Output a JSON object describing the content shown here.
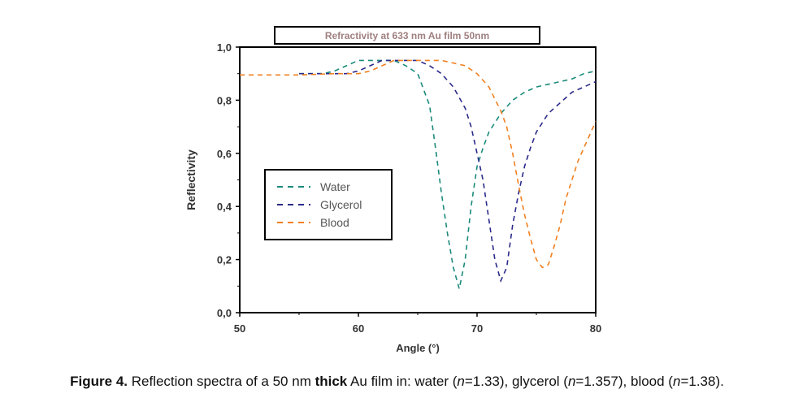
{
  "chart_data": {
    "type": "line",
    "title": "Refractivity at 633 nm Au film 50nm",
    "xlabel": "Angle (°)",
    "ylabel": "Reflectivity",
    "xlim": [
      50,
      80
    ],
    "ylim": [
      0,
      1
    ],
    "xticks": [
      "50",
      "60",
      "70",
      "80"
    ],
    "yticks": [
      "0,0",
      "0,2",
      "0,4",
      "0,6",
      "0,8",
      "1,0"
    ],
    "legend_position": "center-left",
    "series": [
      {
        "name": "Water",
        "color": "#1a8a7a",
        "x": [
          55,
          57,
          58,
          59,
          60,
          61,
          62,
          63,
          64,
          65,
          66,
          66.5,
          67,
          67.5,
          68,
          68.5,
          69,
          69.5,
          70,
          70.5,
          71,
          72,
          73,
          74,
          75,
          76,
          77,
          78,
          79,
          80
        ],
        "y": [
          0.9,
          0.9,
          0.91,
          0.93,
          0.95,
          0.95,
          0.95,
          0.95,
          0.93,
          0.9,
          0.78,
          0.62,
          0.45,
          0.3,
          0.17,
          0.09,
          0.2,
          0.4,
          0.55,
          0.62,
          0.68,
          0.75,
          0.8,
          0.83,
          0.85,
          0.86,
          0.87,
          0.88,
          0.9,
          0.91
        ]
      },
      {
        "name": "Glycerol",
        "color": "#2a2a8a",
        "x": [
          55,
          57,
          58,
          59,
          60,
          61,
          62,
          63,
          64,
          65,
          66,
          67,
          68,
          69,
          69.5,
          70,
          70.5,
          71,
          71.5,
          72,
          72.5,
          73,
          73.5,
          74,
          74.5,
          75,
          76,
          77,
          78,
          79,
          80
        ],
        "y": [
          0.9,
          0.9,
          0.9,
          0.9,
          0.91,
          0.93,
          0.95,
          0.95,
          0.95,
          0.95,
          0.93,
          0.9,
          0.85,
          0.77,
          0.7,
          0.6,
          0.5,
          0.35,
          0.2,
          0.12,
          0.17,
          0.33,
          0.45,
          0.55,
          0.62,
          0.68,
          0.75,
          0.79,
          0.83,
          0.85,
          0.87
        ]
      },
      {
        "name": "Blood",
        "color": "#f08020",
        "x": [
          50,
          55,
          58,
          60,
          61,
          62,
          63,
          64,
          65,
          66,
          67,
          68,
          69,
          70,
          71,
          72,
          72.5,
          73,
          73.5,
          74,
          74.5,
          75,
          75.5,
          76,
          76.5,
          77,
          77.5,
          78,
          78.5,
          79,
          79.5,
          80
        ],
        "y": [
          0.895,
          0.895,
          0.9,
          0.9,
          0.91,
          0.93,
          0.95,
          0.95,
          0.95,
          0.95,
          0.95,
          0.94,
          0.93,
          0.9,
          0.85,
          0.76,
          0.7,
          0.6,
          0.48,
          0.37,
          0.28,
          0.2,
          0.17,
          0.18,
          0.25,
          0.33,
          0.43,
          0.5,
          0.57,
          0.62,
          0.67,
          0.72
        ]
      }
    ]
  },
  "caption": {
    "label": "Figure 4.",
    "text1": " Reflection spectra of a 50 nm ",
    "bold": "thick",
    "text2": " Au film in: water (",
    "n": "n",
    "t3": "=1.33), glycerol (",
    "t4": "=1.357), blood (",
    "t5": "=1.38)."
  }
}
